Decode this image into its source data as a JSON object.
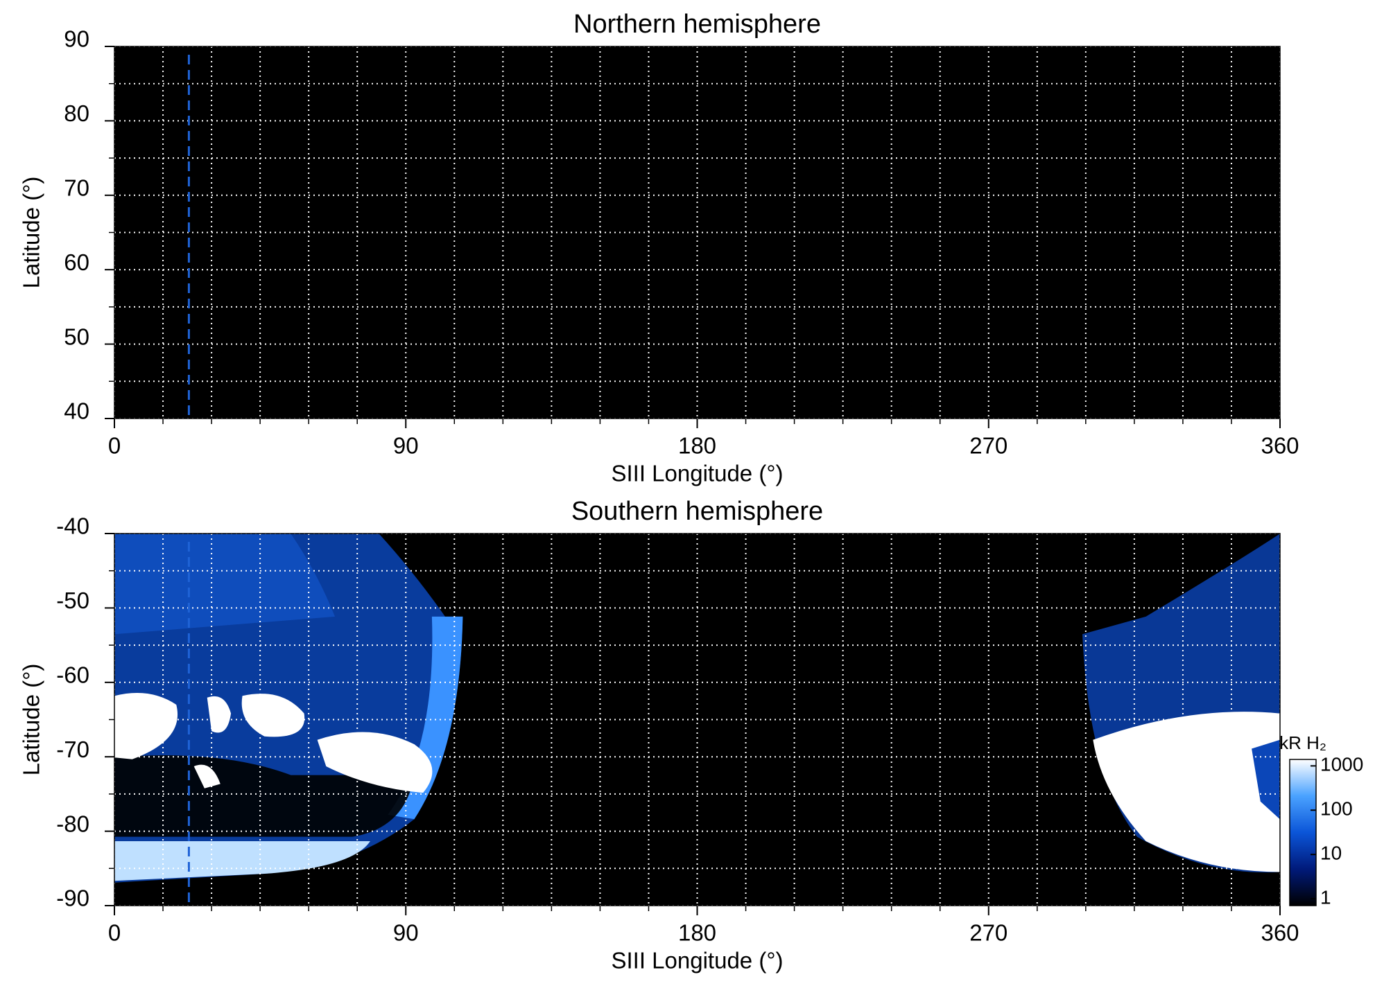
{
  "chart_data": [
    {
      "type": "heatmap",
      "title": "Northern hemisphere",
      "xlabel": "SIII Longitude (°)",
      "ylabel": "Latitude (°)",
      "xlim": [
        0,
        360
      ],
      "ylim": [
        40,
        90
      ],
      "xticks": [
        0,
        90,
        180,
        270,
        360
      ],
      "yticks": [
        40,
        50,
        60,
        70,
        80,
        90
      ],
      "xminorticks": [
        15,
        30,
        45,
        60,
        75,
        105,
        120,
        135,
        150,
        165,
        195,
        210,
        225,
        240,
        255,
        285,
        300,
        315,
        330,
        345
      ],
      "yminorticks": [
        45,
        55,
        65,
        75,
        85
      ],
      "grid": true,
      "background": "#000000",
      "grid_color": "#ffffff",
      "vlines": [
        {
          "x": 23,
          "color": "#1f63d6"
        }
      ]
    },
    {
      "type": "heatmap",
      "title": "Southern hemisphere",
      "xlabel": "SIII Longitude (°)",
      "ylabel": "Latitude (°)",
      "xlim": [
        0,
        360
      ],
      "ylim": [
        -90,
        -40
      ],
      "xticks": [
        0,
        90,
        180,
        270,
        360
      ],
      "yticks": [
        -90,
        -80,
        -70,
        -60,
        -50,
        -40
      ],
      "xminorticks": [
        15,
        30,
        45,
        60,
        75,
        105,
        120,
        135,
        150,
        165,
        195,
        210,
        225,
        240,
        255,
        285,
        300,
        315,
        330,
        345
      ],
      "yminorticks": [
        -85,
        -75,
        -65,
        -55,
        -45
      ],
      "grid": true,
      "background": "#000000",
      "grid_color": "#ffffff",
      "vlines": [
        {
          "x": 23,
          "color": "#1f63d6"
        }
      ]
    },
    {
      "type": "colorbar",
      "label": "kR H₂",
      "log": true,
      "clim": [
        0.7,
        1400
      ],
      "ticks": [
        1,
        10,
        100,
        1000
      ],
      "colors": [
        "#000000",
        "#001a7a",
        "#0b55d8",
        "#4aa2ff",
        "#ffffff"
      ]
    }
  ]
}
